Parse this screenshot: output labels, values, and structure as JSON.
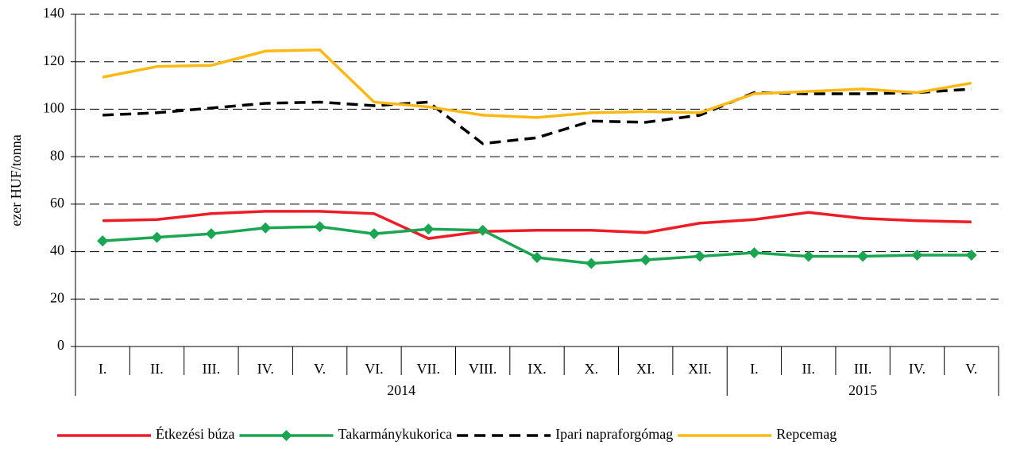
{
  "chart_data": {
    "type": "line",
    "y_label": "ezer HUF/tonna",
    "categories": [
      "I.",
      "II.",
      "III.",
      "IV.",
      "V.",
      "VI.",
      "VII.",
      "VIII.",
      "IX.",
      "X.",
      "XI.",
      "XII.",
      "I.",
      "II.",
      "III.",
      "IV.",
      "V."
    ],
    "category_groups": [
      {
        "name": "2014",
        "count": 12
      },
      {
        "name": "2015",
        "count": 5
      }
    ],
    "series": [
      {
        "name": "Étkezési búza",
        "color": "#ee1c25",
        "values": [
          53,
          53.5,
          56,
          57,
          57,
          56,
          45.5,
          48.5,
          49,
          49,
          48,
          52,
          53.5,
          56.5,
          54,
          53,
          52.5
        ]
      },
      {
        "name": "Takarmánykukorica",
        "color": "#1aa650",
        "marker": "diamond",
        "values": [
          44.5,
          46,
          47.5,
          50,
          50.5,
          47.5,
          49.5,
          49,
          37.5,
          35,
          36.5,
          38,
          39.5,
          38,
          38,
          38.5,
          38.5
        ]
      },
      {
        "name": "Ipari napraforgómag",
        "color": "#000000",
        "dash": true,
        "values": [
          97.5,
          98.5,
          100.5,
          102.5,
          103,
          101.5,
          103,
          85.5,
          88,
          95,
          94.5,
          97.5,
          107,
          106.5,
          106.5,
          107,
          108.5
        ]
      },
      {
        "name": "Repcemag",
        "color": "#fdb913",
        "values": [
          113.5,
          118,
          118.5,
          124.5,
          125,
          103,
          101,
          97.5,
          96.5,
          98.5,
          99,
          98.5,
          106.5,
          107.5,
          108.5,
          107,
          111
        ]
      }
    ],
    "ylim": [
      0,
      140
    ],
    "yticks": [
      0,
      20,
      40,
      60,
      80,
      100,
      120,
      140
    ],
    "grid": true
  }
}
